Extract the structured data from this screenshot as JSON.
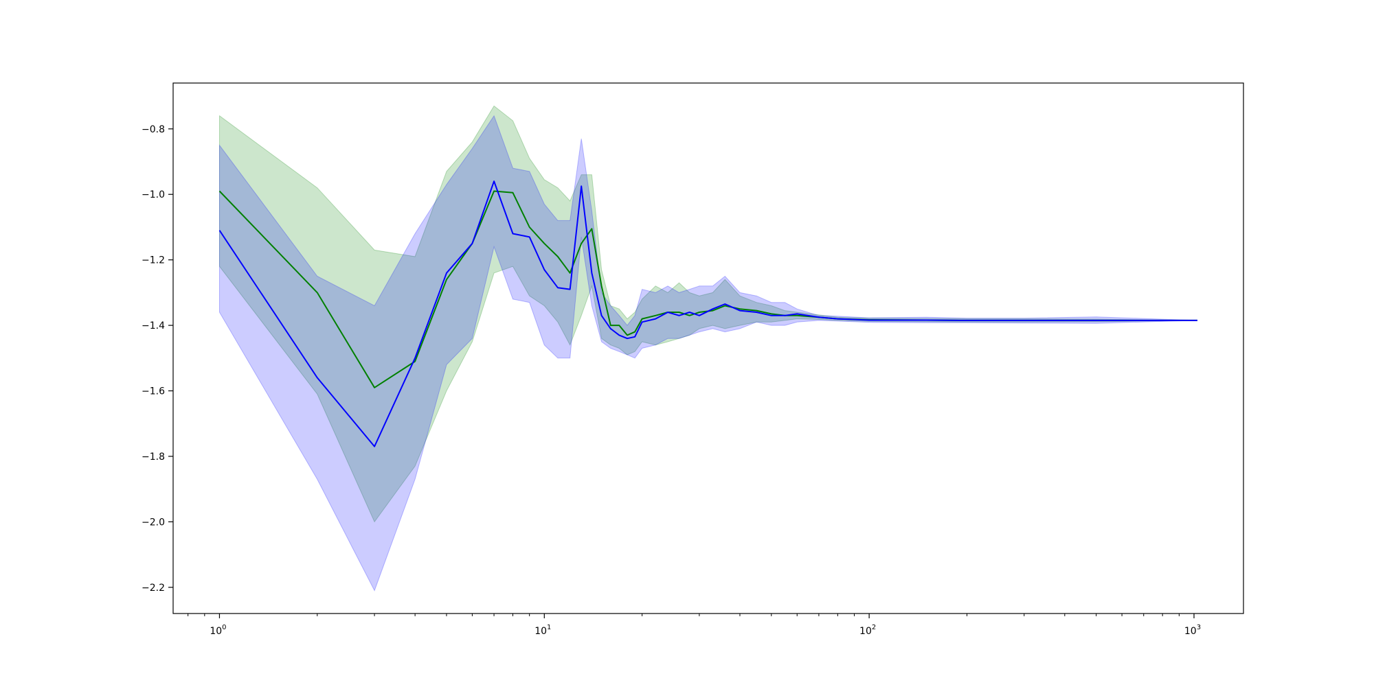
{
  "colors": {
    "green": "#008000",
    "green_band": "#008000",
    "blue": "#0000ff",
    "blue_band": "#0000ff",
    "axes": "#000000",
    "background": "#ffffff"
  },
  "chart_data": {
    "type": "line",
    "title": "",
    "xlabel": "",
    "ylabel": "",
    "xscale": "log",
    "xlim": [
      0.72,
      1420
    ],
    "ylim": [
      -2.28,
      -0.66
    ],
    "grid": false,
    "legend": "none",
    "x_ticks": [
      {
        "value": 1,
        "base": "10",
        "exp": "0"
      },
      {
        "value": 10,
        "base": "10",
        "exp": "1"
      },
      {
        "value": 100,
        "base": "10",
        "exp": "2"
      },
      {
        "value": 1000,
        "base": "10",
        "exp": "3"
      }
    ],
    "y_ticks": [
      {
        "value": -0.8,
        "label": "−0.8"
      },
      {
        "value": -1.0,
        "label": "−1.0"
      },
      {
        "value": -1.2,
        "label": "−1.2"
      },
      {
        "value": -1.4,
        "label": "−1.4"
      },
      {
        "value": -1.6,
        "label": "−1.6"
      },
      {
        "value": -1.8,
        "label": "−1.8"
      },
      {
        "value": -2.0,
        "label": "−2.0"
      },
      {
        "value": -2.2,
        "label": "−2.2"
      }
    ],
    "series": [
      {
        "color": "green",
        "x": [
          1,
          2,
          3,
          4,
          5,
          6,
          7,
          8,
          9,
          10,
          11,
          12,
          13,
          14,
          15,
          16,
          17,
          18,
          19,
          20,
          22,
          24,
          26,
          28,
          30,
          33,
          36,
          40,
          45,
          50,
          55,
          60,
          70,
          80,
          100,
          150,
          200,
          300,
          500,
          1024
        ],
        "mean": [
          -0.99,
          -1.3,
          -1.59,
          -1.51,
          -1.26,
          -1.15,
          -0.99,
          -0.995,
          -1.1,
          -1.15,
          -1.19,
          -1.24,
          -1.15,
          -1.105,
          -1.28,
          -1.4,
          -1.4,
          -1.43,
          -1.42,
          -1.38,
          -1.37,
          -1.36,
          -1.36,
          -1.37,
          -1.36,
          -1.355,
          -1.34,
          -1.35,
          -1.355,
          -1.365,
          -1.37,
          -1.37,
          -1.375,
          -1.38,
          -1.383,
          -1.384,
          -1.385,
          -1.385,
          -1.385,
          -1.385
        ],
        "upper": [
          -0.76,
          -0.98,
          -1.17,
          -1.19,
          -0.93,
          -0.84,
          -0.73,
          -0.775,
          -0.89,
          -0.955,
          -0.98,
          -1.02,
          -0.94,
          -0.94,
          -1.23,
          -1.34,
          -1.35,
          -1.38,
          -1.36,
          -1.32,
          -1.28,
          -1.3,
          -1.27,
          -1.3,
          -1.31,
          -1.3,
          -1.26,
          -1.31,
          -1.33,
          -1.34,
          -1.355,
          -1.36,
          -1.368,
          -1.375,
          -1.378,
          -1.379,
          -1.38,
          -1.38,
          -1.381,
          -1.385
        ],
        "lower": [
          -1.22,
          -1.61,
          -2.0,
          -1.83,
          -1.6,
          -1.45,
          -1.24,
          -1.22,
          -1.31,
          -1.34,
          -1.39,
          -1.46,
          -1.37,
          -1.28,
          -1.44,
          -1.46,
          -1.47,
          -1.49,
          -1.48,
          -1.45,
          -1.46,
          -1.45,
          -1.44,
          -1.43,
          -1.41,
          -1.4,
          -1.41,
          -1.4,
          -1.39,
          -1.39,
          -1.385,
          -1.38,
          -1.382,
          -1.385,
          -1.388,
          -1.389,
          -1.39,
          -1.39,
          -1.389,
          -1.385
        ]
      },
      {
        "color": "blue",
        "x": [
          1,
          2,
          3,
          4,
          5,
          6,
          7,
          8,
          9,
          10,
          11,
          12,
          13,
          14,
          15,
          16,
          17,
          18,
          19,
          20,
          22,
          24,
          26,
          28,
          30,
          33,
          36,
          40,
          45,
          50,
          55,
          60,
          70,
          80,
          100,
          150,
          200,
          300,
          500,
          1024
        ],
        "mean": [
          -1.11,
          -1.56,
          -1.77,
          -1.5,
          -1.24,
          -1.15,
          -0.96,
          -1.12,
          -1.13,
          -1.23,
          -1.285,
          -1.29,
          -0.975,
          -1.24,
          -1.37,
          -1.41,
          -1.43,
          -1.44,
          -1.435,
          -1.39,
          -1.38,
          -1.36,
          -1.37,
          -1.36,
          -1.37,
          -1.35,
          -1.335,
          -1.355,
          -1.36,
          -1.37,
          -1.37,
          -1.365,
          -1.375,
          -1.38,
          -1.384,
          -1.384,
          -1.385,
          -1.385,
          -1.385,
          -1.385
        ],
        "upper": [
          -0.85,
          -1.25,
          -1.34,
          -1.12,
          -0.97,
          -0.86,
          -0.76,
          -0.92,
          -0.93,
          -1.03,
          -1.08,
          -1.08,
          -0.83,
          -1.05,
          -1.3,
          -1.34,
          -1.37,
          -1.4,
          -1.37,
          -1.29,
          -1.3,
          -1.28,
          -1.3,
          -1.29,
          -1.28,
          -1.28,
          -1.25,
          -1.3,
          -1.31,
          -1.33,
          -1.33,
          -1.35,
          -1.37,
          -1.372,
          -1.377,
          -1.375,
          -1.378,
          -1.378,
          -1.374,
          -1.385
        ],
        "lower": [
          -1.36,
          -1.87,
          -2.21,
          -1.87,
          -1.52,
          -1.44,
          -1.16,
          -1.32,
          -1.33,
          -1.46,
          -1.5,
          -1.5,
          -1.13,
          -1.34,
          -1.45,
          -1.47,
          -1.48,
          -1.49,
          -1.5,
          -1.47,
          -1.46,
          -1.44,
          -1.44,
          -1.43,
          -1.42,
          -1.41,
          -1.42,
          -1.41,
          -1.39,
          -1.4,
          -1.4,
          -1.39,
          -1.385,
          -1.387,
          -1.391,
          -1.392,
          -1.392,
          -1.393,
          -1.394,
          -1.385
        ]
      }
    ]
  }
}
